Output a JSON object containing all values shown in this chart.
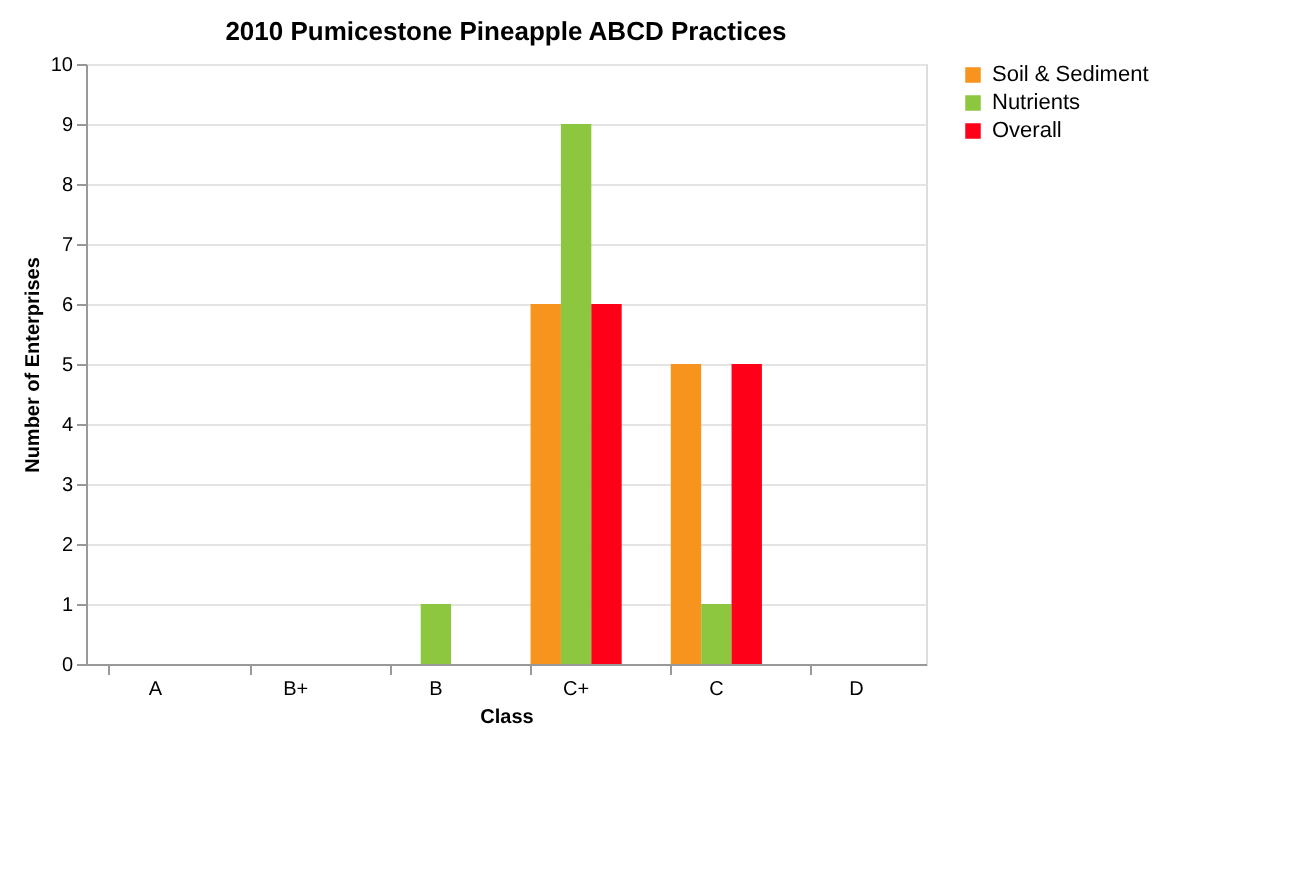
{
  "chart_data": {
    "type": "bar",
    "title": "2010 Pumicestone Pineapple ABCD Practices",
    "xlabel": "Class",
    "ylabel": "Number of Enterprises",
    "categories": [
      "A",
      "B+",
      "B",
      "C+",
      "C",
      "D"
    ],
    "series": [
      {
        "name": "Soil & Sediment",
        "color": "#f7941d",
        "values": [
          0,
          0,
          0,
          6,
          5,
          0
        ]
      },
      {
        "name": "Nutrients",
        "color": "#8dc63f",
        "values": [
          0,
          0,
          1,
          9,
          1,
          0
        ]
      },
      {
        "name": "Overall",
        "color": "#ff0019",
        "values": [
          0,
          0,
          0,
          6,
          5,
          0
        ]
      }
    ],
    "ylim": [
      0,
      10
    ],
    "yticks": [
      0,
      1,
      2,
      3,
      4,
      5,
      6,
      7,
      8,
      9,
      10
    ],
    "grid": "y",
    "legend": "right"
  }
}
